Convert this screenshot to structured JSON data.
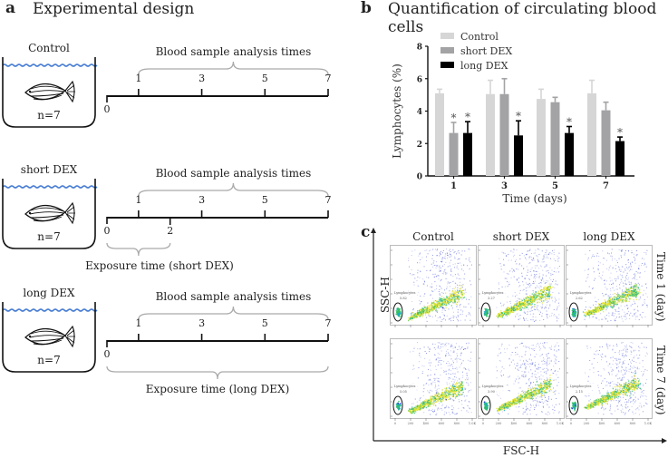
{
  "panel_a": {
    "letter": "a",
    "title": "Experimental design",
    "groups": [
      {
        "name": "Control",
        "n_label": "n=7",
        "sampling_label": "Blood sample analysis times",
        "ticks_above": [
          "1",
          "3",
          "5",
          "7"
        ],
        "ticks_below": [
          "0"
        ],
        "exposure_label": ""
      },
      {
        "name": "short DEX",
        "n_label": "n=7",
        "sampling_label": "Blood sample analysis times",
        "ticks_above": [
          "1",
          "3",
          "5",
          "7"
        ],
        "ticks_below": [
          "0",
          "2"
        ],
        "exposure_label": "Exposure time (short DEX)"
      },
      {
        "name": "long DEX",
        "n_label": "n=7",
        "sampling_label": "Blood sample analysis times",
        "ticks_above": [
          "1",
          "3",
          "5",
          "7"
        ],
        "ticks_below": [
          "0"
        ],
        "exposure_label": "Exposure time (long DEX)"
      }
    ],
    "colors": {
      "water": "#4a7fd4",
      "brace": "#aaaaaa",
      "line": "#111111"
    }
  },
  "panel_b": {
    "letter": "b",
    "title": "Quantification of circulating blood cells"
  },
  "panel_c": {
    "letter": "c",
    "column_labels": [
      "Control",
      "short DEX",
      "long DEX"
    ],
    "row_labels": [
      "Time 1 (day)",
      "Time 7 (day)"
    ],
    "xlabel": "FSC-H",
    "ylabel": "SSC-H",
    "gate_label": "Lymphocytes",
    "gate_values": [
      [
        "5.82",
        "3.27",
        "2.62"
      ],
      [
        "5.05",
        "3.90",
        "2.15"
      ]
    ],
    "axis_ticks": [
      "0",
      "200",
      "400",
      "600",
      "800",
      "1.0K"
    ]
  },
  "chart_data": {
    "type": "bar",
    "title": "Quantification of circulating blood cells",
    "xlabel": "Time (days)",
    "ylabel": "Lymphocytes (%)",
    "categories": [
      "1",
      "3",
      "5",
      "7"
    ],
    "ylim": [
      0,
      8
    ],
    "yticks": [
      "0",
      "2",
      "4",
      "6",
      "8"
    ],
    "legend_position": "top-left",
    "series": [
      {
        "name": "Control",
        "color": "#d6d6d6",
        "values": [
          5.1,
          5.05,
          4.75,
          5.1
        ],
        "error_upper": [
          5.35,
          5.9,
          5.35,
          5.9
        ],
        "significant": [
          false,
          false,
          false,
          false
        ]
      },
      {
        "name": "short DEX",
        "color": "#a3a3a6",
        "values": [
          2.65,
          5.05,
          4.55,
          4.05
        ],
        "error_upper": [
          3.3,
          6.0,
          4.85,
          4.55
        ],
        "significant": [
          true,
          false,
          false,
          false
        ]
      },
      {
        "name": "long DEX",
        "color": "#000000",
        "values": [
          2.65,
          2.5,
          2.65,
          2.15
        ],
        "error_upper": [
          3.35,
          3.4,
          3.05,
          2.4
        ],
        "significant": [
          true,
          true,
          true,
          true
        ]
      }
    ],
    "significance_marker": "*"
  }
}
